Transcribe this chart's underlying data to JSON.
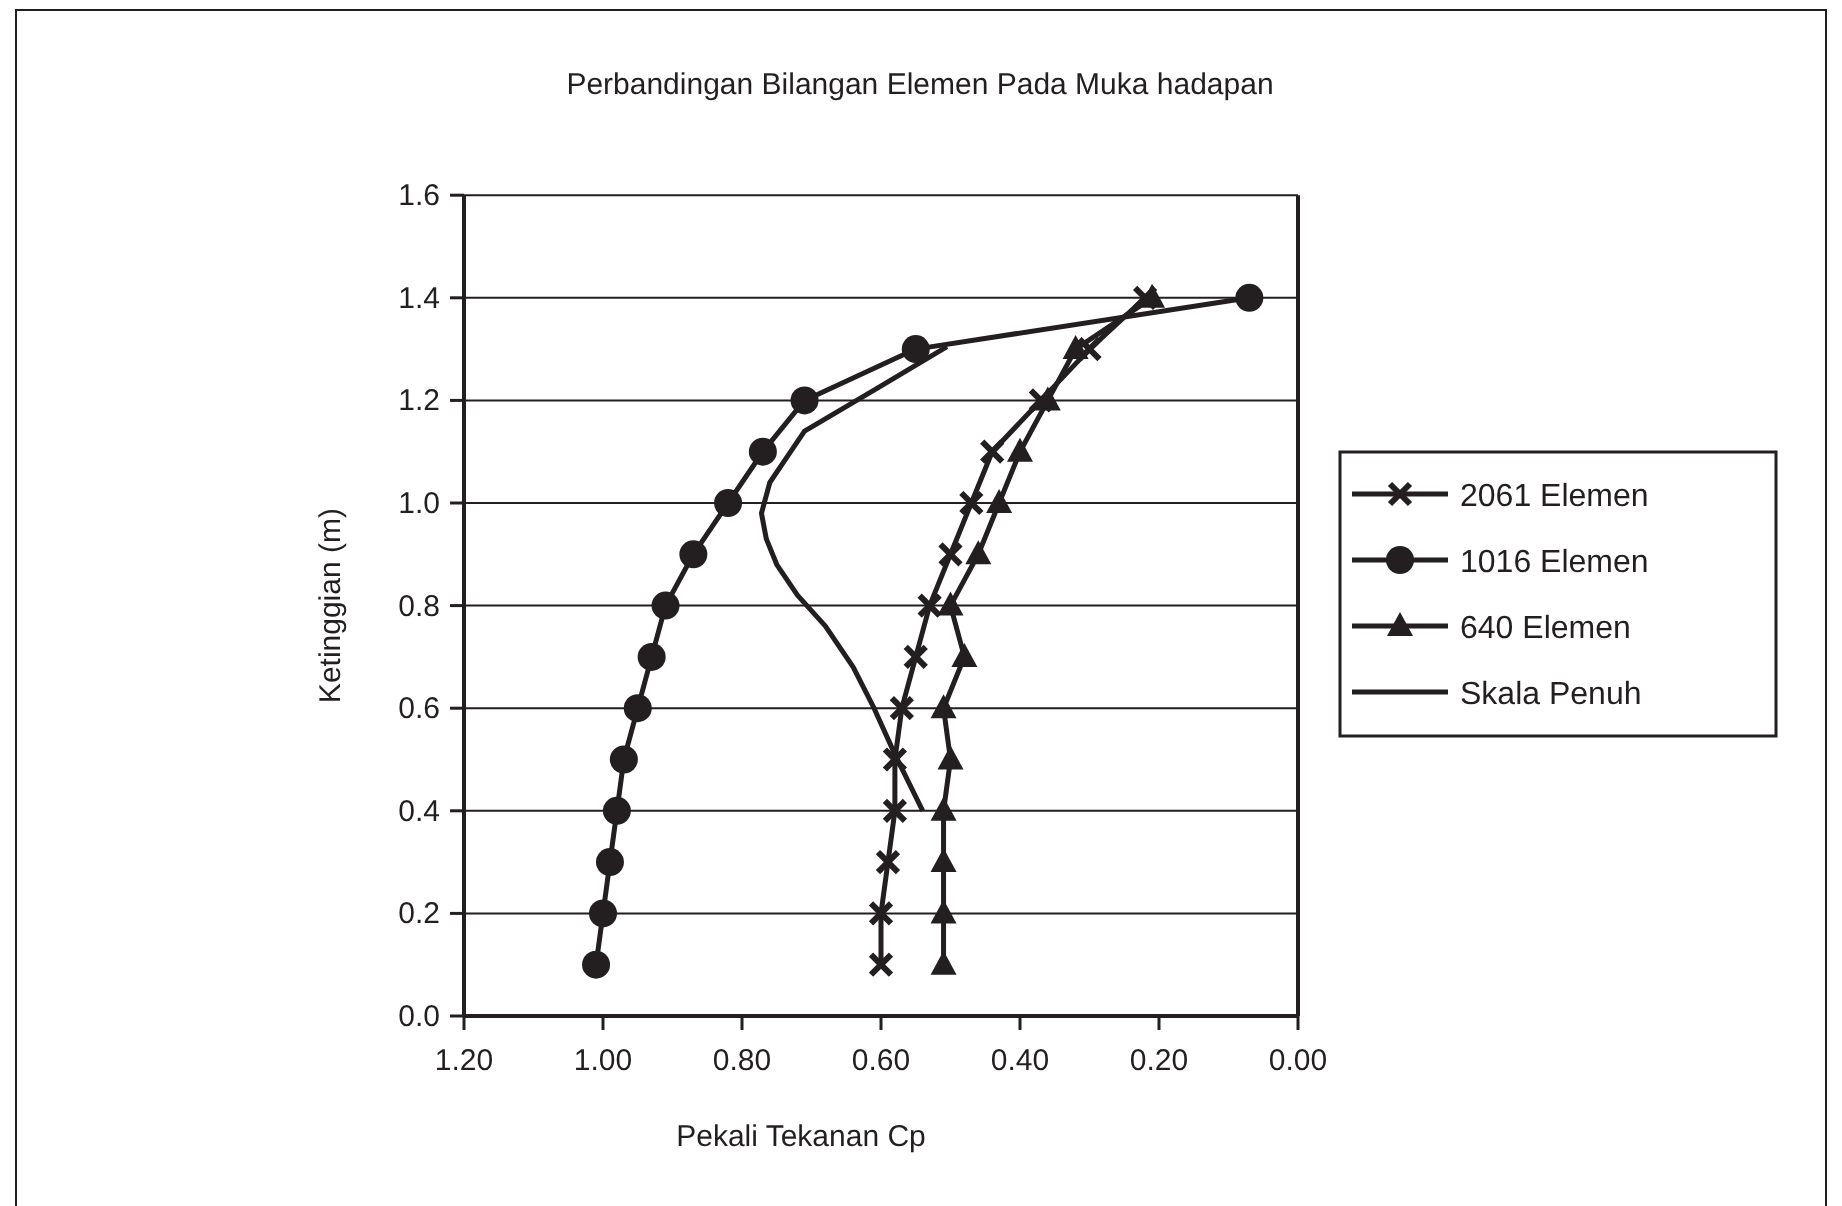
{
  "chart_data": {
    "type": "line",
    "title": "Perbandingan Bilangan Elemen Pada Muka hadapan",
    "xlabel": "Pekali Tekanan Cp",
    "ylabel": "Ketinggian (m)",
    "xlim": [
      1.2,
      0
    ],
    "xticks": [
      {
        "value": 1.2,
        "label": "1.20"
      },
      {
        "value": 1.0,
        "label": "1.00"
      },
      {
        "value": 0.8,
        "label": "0.80"
      },
      {
        "value": 0.6,
        "label": "0.60"
      },
      {
        "value": 0.4,
        "label": "0.40"
      },
      {
        "value": 0.2,
        "label": "0.20"
      },
      {
        "value": 0,
        "label": "0.00"
      }
    ],
    "ylim": [
      0,
      1.6
    ],
    "yticks": [
      {
        "value": 0,
        "label": "0.0"
      },
      {
        "value": 0.2,
        "label": "0.2"
      },
      {
        "value": 0.4,
        "label": "0.4"
      },
      {
        "value": 0.6,
        "label": "0.6"
      },
      {
        "value": 0.8,
        "label": "0.8"
      },
      {
        "value": 1.0,
        "label": "1.0"
      },
      {
        "value": 1.2,
        "label": "1.2"
      },
      {
        "value": 1.4,
        "label": "1.4"
      },
      {
        "value": 1.6,
        "label": "1.6"
      }
    ],
    "grid": "y",
    "legend": "right",
    "series": [
      {
        "name": "2061 Elemen",
        "color": "#231f20",
        "marker": "cross",
        "x": [
          0.6,
          0.6,
          0.59,
          0.58,
          0.58,
          0.57,
          0.55,
          0.53,
          0.5,
          0.47,
          0.44,
          0.37,
          0.3,
          0.22
        ],
        "values": [
          0.1,
          0.2,
          0.3,
          0.4,
          0.5,
          0.6,
          0.7,
          0.8,
          0.9,
          1.0,
          1.1,
          1.2,
          1.3,
          1.4
        ]
      },
      {
        "name": "1016 Elemen",
        "color": "#231f20",
        "marker": "circle",
        "x": [
          1.01,
          1.0,
          0.99,
          0.98,
          0.97,
          0.95,
          0.93,
          0.91,
          0.87,
          0.82,
          0.77,
          0.71,
          0.55,
          0.07
        ],
        "values": [
          0.1,
          0.2,
          0.3,
          0.4,
          0.5,
          0.6,
          0.7,
          0.8,
          0.9,
          1.0,
          1.1,
          1.2,
          1.3,
          1.4
        ]
      },
      {
        "name": "640 Elemen",
        "color": "#231f20",
        "marker": "triangle",
        "x": [
          0.51,
          0.51,
          0.51,
          0.51,
          0.5,
          0.51,
          0.48,
          0.5,
          0.46,
          0.43,
          0.4,
          0.36,
          0.32,
          0.21
        ],
        "values": [
          0.1,
          0.2,
          0.3,
          0.4,
          0.5,
          0.6,
          0.7,
          0.8,
          0.9,
          1.0,
          1.1,
          1.2,
          1.3,
          1.4
        ]
      },
      {
        "name": "Skala Penuh",
        "color": "#231f20",
        "marker": "none",
        "x": [
          0.54,
          0.58,
          0.61,
          0.64,
          0.68,
          0.72,
          0.75,
          0.765,
          0.772,
          0.76,
          0.73,
          0.71,
          0.61,
          0.505
        ],
        "values": [
          0.4,
          0.51,
          0.6,
          0.68,
          0.76,
          0.82,
          0.88,
          0.93,
          0.98,
          1.04,
          1.1,
          1.14,
          1.22,
          1.305
        ]
      }
    ]
  }
}
